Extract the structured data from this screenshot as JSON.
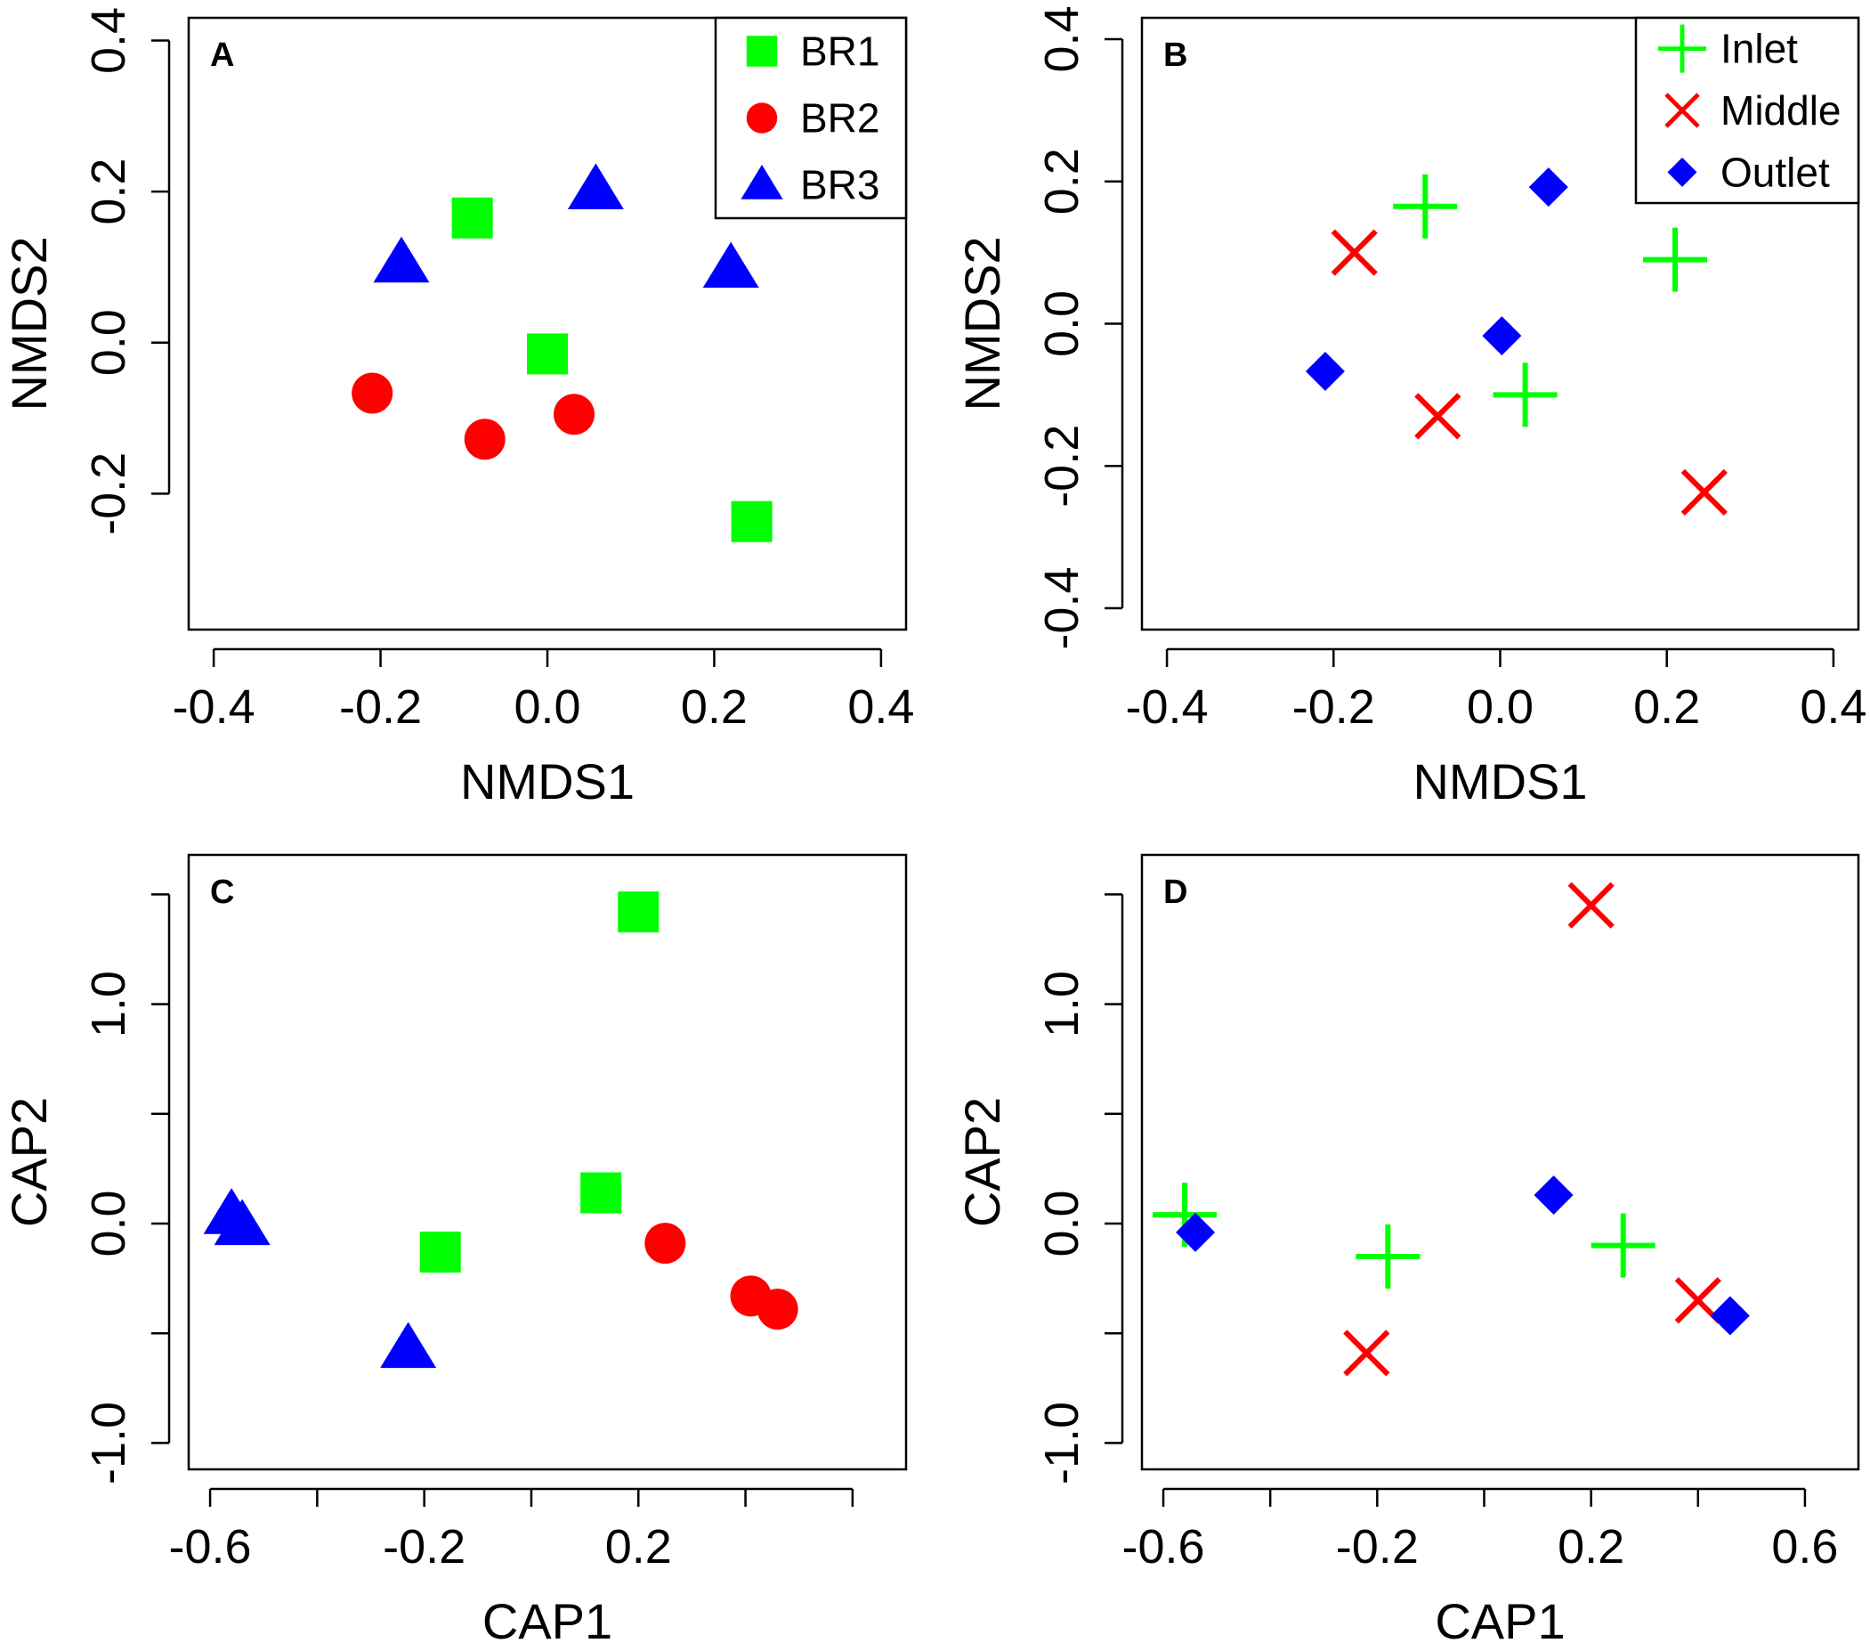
{
  "colors": {
    "green": "#00ff00",
    "red": "#ff0000",
    "blue": "#0000ff"
  },
  "chart_data": [
    {
      "panel": "A",
      "type": "scatter",
      "xlabel": "NMDS1",
      "ylabel": "NMDS2",
      "xlim": [
        -0.43,
        0.43
      ],
      "ylim": [
        -0.38,
        0.43
      ],
      "xticks": [
        -0.4,
        -0.2,
        0.0,
        0.2,
        0.4
      ],
      "xtick_labels": [
        "-0.4",
        "-0.2",
        "0.0",
        "0.2",
        "0.4"
      ],
      "yticks": [
        -0.2,
        0.0,
        0.2,
        0.4
      ],
      "ytick_labels": [
        "-0.2",
        "0.0",
        "0.2",
        "0.4"
      ],
      "legend": {
        "position": "top-right",
        "entries": [
          {
            "label": "BR1",
            "symbol": "square",
            "color": "#00ff00"
          },
          {
            "label": "BR2",
            "symbol": "circle",
            "color": "#ff0000"
          },
          {
            "label": "BR3",
            "symbol": "triangle",
            "color": "#0000ff"
          }
        ]
      },
      "series": [
        {
          "name": "BR1",
          "symbol": "square",
          "color": "#00ff00",
          "points": [
            [
              -0.09,
              0.165
            ],
            [
              0.0,
              -0.015
            ],
            [
              0.245,
              -0.237
            ]
          ]
        },
        {
          "name": "BR2",
          "symbol": "circle",
          "color": "#ff0000",
          "points": [
            [
              -0.21,
              -0.067
            ],
            [
              -0.075,
              -0.128
            ],
            [
              0.032,
              -0.095
            ]
          ]
        },
        {
          "name": "BR3",
          "symbol": "triangle",
          "color": "#0000ff",
          "points": [
            [
              -0.175,
              0.105
            ],
            [
              0.058,
              0.202
            ],
            [
              0.22,
              0.098
            ]
          ]
        }
      ]
    },
    {
      "panel": "B",
      "type": "scatter",
      "xlabel": "NMDS1",
      "ylabel": "NMDS2",
      "xlim": [
        -0.43,
        0.43
      ],
      "ylim": [
        -0.43,
        0.43
      ],
      "xticks": [
        -0.4,
        -0.2,
        0.0,
        0.2,
        0.4
      ],
      "xtick_labels": [
        "-0.4",
        "-0.2",
        "0.0",
        "0.2",
        "0.4"
      ],
      "yticks": [
        -0.4,
        -0.2,
        0.0,
        0.2,
        0.4
      ],
      "ytick_labels": [
        "-0.4",
        "-0.2",
        "0.0",
        "0.2",
        "0.4"
      ],
      "legend": {
        "position": "top-right",
        "entries": [
          {
            "label": "Inlet",
            "symbol": "plus",
            "color": "#00ff00"
          },
          {
            "label": "Middle",
            "symbol": "cross",
            "color": "#ff0000"
          },
          {
            "label": "Outlet",
            "symbol": "diamond",
            "color": "#0000ff"
          }
        ]
      },
      "series": [
        {
          "name": "Inlet",
          "symbol": "plus",
          "color": "#00ff00",
          "points": [
            [
              -0.09,
              0.165
            ],
            [
              0.21,
              0.09
            ],
            [
              0.03,
              -0.1
            ]
          ]
        },
        {
          "name": "Middle",
          "symbol": "cross",
          "color": "#ff0000",
          "points": [
            [
              -0.175,
              0.1
            ],
            [
              -0.075,
              -0.13
            ],
            [
              0.245,
              -0.237
            ]
          ]
        },
        {
          "name": "Outlet",
          "symbol": "diamond",
          "color": "#0000ff",
          "points": [
            [
              -0.21,
              -0.067
            ],
            [
              0.002,
              -0.017
            ],
            [
              0.058,
              0.192
            ]
          ]
        }
      ]
    },
    {
      "panel": "C",
      "type": "scatter",
      "xlabel": "CAP1",
      "ylabel": "CAP2",
      "xlim": [
        -0.64,
        0.7
      ],
      "ylim": [
        -1.12,
        1.68
      ],
      "xticks": [
        -0.6,
        -0.4,
        -0.2,
        0.0,
        0.2,
        0.4,
        0.6
      ],
      "xtick_labels": [
        "-0.6",
        "",
        "-0.2",
        "",
        "0.2",
        "",
        ""
      ],
      "yticks": [
        -1.0,
        -0.5,
        0.0,
        0.5,
        1.0,
        1.5
      ],
      "ytick_labels": [
        "-1.0",
        "",
        "0.0",
        "",
        "1.0",
        ""
      ],
      "series": [
        {
          "name": "BR1",
          "symbol": "square",
          "color": "#00ff00",
          "points": [
            [
              0.2,
              1.42
            ],
            [
              0.13,
              0.14
            ],
            [
              -0.17,
              -0.13
            ]
          ]
        },
        {
          "name": "BR2",
          "symbol": "circle",
          "color": "#ff0000",
          "points": [
            [
              0.25,
              -0.09
            ],
            [
              0.41,
              -0.33
            ],
            [
              0.46,
              -0.39
            ]
          ]
        },
        {
          "name": "BR3",
          "symbol": "triangle",
          "color": "#0000ff",
          "points": [
            [
              -0.56,
              0.04
            ],
            [
              -0.54,
              -0.01
            ],
            [
              -0.23,
              -0.57
            ]
          ]
        }
      ]
    },
    {
      "panel": "D",
      "type": "scatter",
      "xlabel": "CAP1",
      "ylabel": "CAP2",
      "xlim": [
        -0.64,
        0.7
      ],
      "ylim": [
        -1.12,
        1.68
      ],
      "xticks": [
        -0.6,
        -0.4,
        -0.2,
        0.0,
        0.2,
        0.4,
        0.6
      ],
      "xtick_labels": [
        "-0.6",
        "",
        "-0.2",
        "",
        "0.2",
        "",
        "0.6"
      ],
      "yticks": [
        -1.0,
        -0.5,
        0.0,
        0.5,
        1.0,
        1.5
      ],
      "ytick_labels": [
        "-1.0",
        "",
        "0.0",
        "",
        "1.0",
        ""
      ],
      "series": [
        {
          "name": "Inlet",
          "symbol": "plus",
          "color": "#00ff00",
          "points": [
            [
              -0.56,
              0.04
            ],
            [
              -0.18,
              -0.15
            ],
            [
              0.26,
              -0.1
            ]
          ]
        },
        {
          "name": "Middle",
          "symbol": "cross",
          "color": "#ff0000",
          "points": [
            [
              0.2,
              1.45
            ],
            [
              -0.22,
              -0.59
            ],
            [
              0.4,
              -0.35
            ]
          ]
        },
        {
          "name": "Outlet",
          "symbol": "diamond",
          "color": "#0000ff",
          "points": [
            [
              -0.54,
              -0.04
            ],
            [
              0.13,
              0.13
            ],
            [
              0.46,
              -0.42
            ]
          ]
        }
      ]
    }
  ]
}
